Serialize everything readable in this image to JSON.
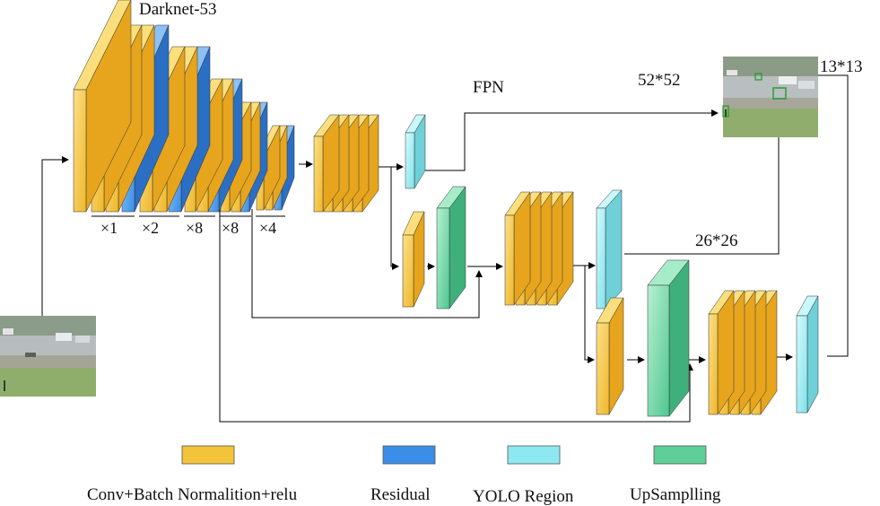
{
  "title": "Darknet-53",
  "fpn_label": "FPN",
  "outputs": {
    "large": "52*52",
    "medium": "26*26",
    "small": "13*13"
  },
  "stage_multipliers": [
    "×1",
    "×2",
    "×8",
    "×8",
    "×4"
  ],
  "legend": [
    {
      "label": "Conv+Batch Normalition+relu",
      "color": "#f3c33a"
    },
    {
      "label": "Residual",
      "color": "#3b8ee8"
    },
    {
      "label": "YOLO Region",
      "color": "#8ee8ef"
    },
    {
      "label": "UpSamplling",
      "color": "#5fcf9a"
    }
  ],
  "colors": {
    "conv": "#f3c33a",
    "conv_side": "#e6a51d",
    "conv_top": "#fbdf7d",
    "residual": "#3b8ee8",
    "residual_side": "#2a6fc4",
    "residual_top": "#8dc0f5",
    "yolo": "#8ee8ef",
    "yolo_side": "#6fd0d8",
    "yolo_top": "#c9f7fa",
    "upsample": "#5fcf9a",
    "upsample_side": "#3fb07c",
    "upsample_top": "#a7ecc8"
  }
}
